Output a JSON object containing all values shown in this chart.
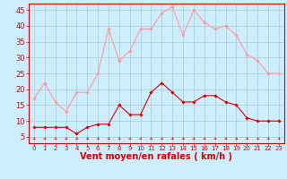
{
  "hours": [
    0,
    1,
    2,
    3,
    4,
    5,
    6,
    7,
    8,
    9,
    10,
    11,
    12,
    13,
    14,
    15,
    16,
    17,
    18,
    19,
    20,
    21,
    22,
    23
  ],
  "wind_mean": [
    8,
    8,
    8,
    8,
    6,
    8,
    9,
    9,
    15,
    12,
    12,
    19,
    22,
    19,
    16,
    16,
    18,
    18,
    16,
    15,
    11,
    10,
    10,
    10
  ],
  "wind_gust": [
    17,
    22,
    16,
    13,
    19,
    19,
    25,
    39,
    29,
    32,
    39,
    39,
    44,
    46,
    37,
    45,
    41,
    39,
    40,
    37,
    31,
    29,
    25,
    25
  ],
  "bg_color": "#cceeff",
  "grid_color": "#aacccc",
  "mean_color": "#dd0000",
  "gust_color": "#ff9999",
  "xlabel": "Vent moyen/en rafales ( km/h )",
  "ylim_min": 3,
  "ylim_max": 47,
  "yticks": [
    5,
    10,
    15,
    20,
    25,
    30,
    35,
    40,
    45
  ],
  "tick_fontsize": 6,
  "xlabel_fontsize": 7
}
